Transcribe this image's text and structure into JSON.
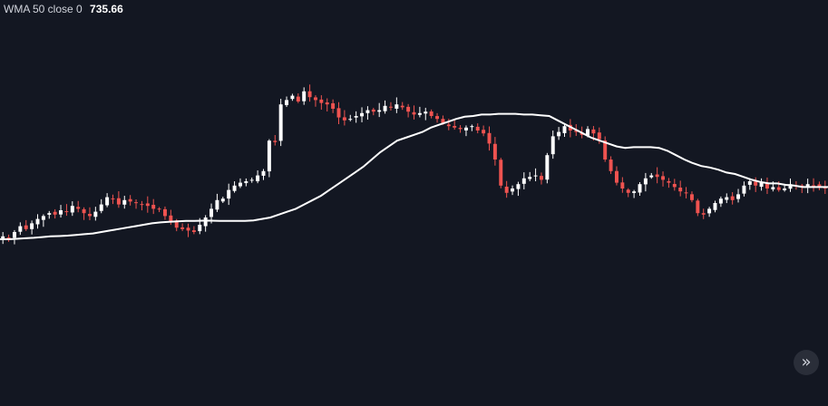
{
  "indicator": {
    "label": "WMA 50 close 0",
    "value": "735.66"
  },
  "scroll_button": {
    "icon": "double-chevron-right-icon",
    "glyph": "»"
  },
  "colors": {
    "background": "#131722",
    "up": "#ffffff",
    "down": "#ef5350",
    "ma_line": "#ffffff"
  },
  "chart_data": {
    "type": "candlestick",
    "y_range": [
      555,
      805
    ],
    "grid": false,
    "ohlc_closes": [
      667,
      666,
      670,
      674,
      672,
      676,
      679,
      681,
      683,
      682,
      685,
      684,
      688,
      686,
      683,
      681,
      684,
      689,
      694,
      693,
      689,
      692,
      691,
      690,
      689,
      688,
      686,
      686,
      681,
      677,
      673,
      672,
      671,
      670,
      675,
      680,
      686,
      692,
      693,
      699,
      702,
      704,
      705,
      706,
      709,
      712,
      733,
      732,
      758,
      761,
      764,
      760,
      767,
      763,
      761,
      759,
      758,
      755,
      749,
      747,
      748,
      750,
      752,
      754,
      753,
      754,
      757,
      756,
      758,
      756,
      753,
      751,
      752,
      753,
      750,
      748,
      745,
      743,
      742,
      741,
      742,
      743,
      740,
      738,
      731,
      720,
      702,
      697,
      700,
      703,
      707,
      708,
      709,
      706,
      723,
      736,
      739,
      743,
      740,
      739,
      737,
      741,
      738,
      734,
      720,
      712,
      704,
      700,
      697,
      698,
      703,
      707,
      709,
      708,
      706,
      704,
      701,
      698,
      697,
      692,
      683,
      682,
      686,
      690,
      693,
      694,
      692,
      696,
      702,
      705,
      702,
      704,
      700,
      701,
      699,
      700,
      703,
      702,
      701,
      703,
      702,
      701,
      700
    ],
    "wma": {
      "name": "WMA 50 close 0",
      "values": [
        665,
        665,
        665.3,
        665.7,
        666,
        666.5,
        667,
        667.2,
        667.5,
        668,
        668.5,
        669,
        670,
        671,
        672,
        673,
        674,
        675,
        676,
        676.6,
        677,
        677.4,
        677.6,
        677.7,
        677.8,
        677.8,
        677.7,
        677.6,
        677.6,
        677.7,
        678,
        679,
        680,
        682,
        684,
        686,
        689,
        692,
        695,
        699,
        703,
        707,
        711,
        715,
        720,
        725,
        729,
        733,
        735,
        737,
        739,
        742,
        744,
        746,
        748,
        749.5,
        750,
        751,
        751,
        751.5,
        751.5,
        751.5,
        751,
        751,
        750.5,
        750,
        747,
        744,
        741,
        738,
        735,
        733,
        731,
        729,
        728,
        728.5,
        728.5,
        728.5,
        728,
        726,
        723,
        720,
        717.5,
        715.5,
        714.5,
        713,
        711,
        710,
        708,
        706,
        704.5,
        703.5,
        703.5,
        702.5,
        702,
        701,
        701,
        701,
        701
      ]
    },
    "last_value": 735.66
  }
}
